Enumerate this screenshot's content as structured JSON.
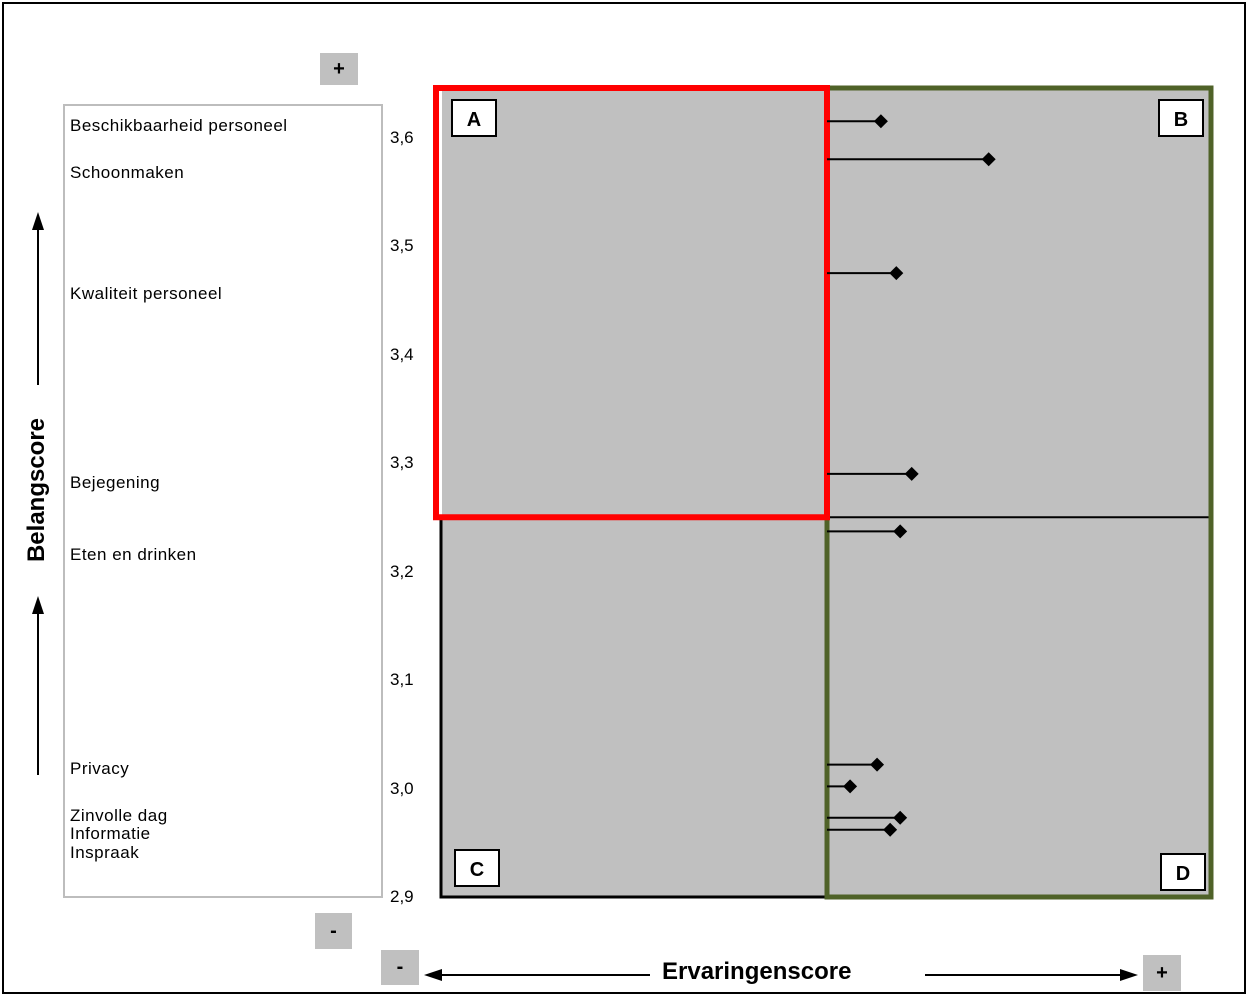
{
  "chart_data": {
    "type": "scatter",
    "xlabel": "Ervaringenscore",
    "ylabel": "Belangscore",
    "ylim": [
      2.9,
      3.65
    ],
    "yticks": [
      "3,6",
      "3,5",
      "3,4",
      "3,3",
      "3,2",
      "3,1",
      "3,0",
      "2,9"
    ],
    "ytick_values": [
      3.6,
      3.5,
      3.4,
      3.3,
      3.2,
      3.1,
      3.0,
      2.9
    ],
    "xlim": [
      0,
      1
    ],
    "x_split": 0.5,
    "y_split": 3.25,
    "quadrants": [
      "A",
      "B",
      "C",
      "D"
    ],
    "quadrant_colors": {
      "A": "#ff0000",
      "B": "#4f6228",
      "C": "#000000",
      "D": "#000000"
    },
    "plot_bg": "#c0c0c0",
    "items": [
      {
        "label": "Beschikbaarheid personeel",
        "x": 0.57,
        "y": 3.615
      },
      {
        "label": "Schoonmaken",
        "x": 0.71,
        "y": 3.58
      },
      {
        "label": "Kwaliteit personeel",
        "x": 0.59,
        "y": 3.475
      },
      {
        "label": "Bejegening",
        "x": 0.61,
        "y": 3.29
      },
      {
        "label": "Eten en drinken",
        "x": 0.595,
        "y": 3.237
      },
      {
        "label": "Privacy",
        "x": 0.565,
        "y": 3.022
      },
      {
        "label": "Zinvolle dag",
        "x": 0.53,
        "y": 3.002
      },
      {
        "label": "Informatie",
        "x": 0.595,
        "y": 2.973
      },
      {
        "label": "Inspraak",
        "x": 0.582,
        "y": 2.962
      }
    ]
  },
  "axis_markers": {
    "y_top": "+",
    "y_bottom": "-",
    "x_left": "-",
    "x_right": "+"
  }
}
